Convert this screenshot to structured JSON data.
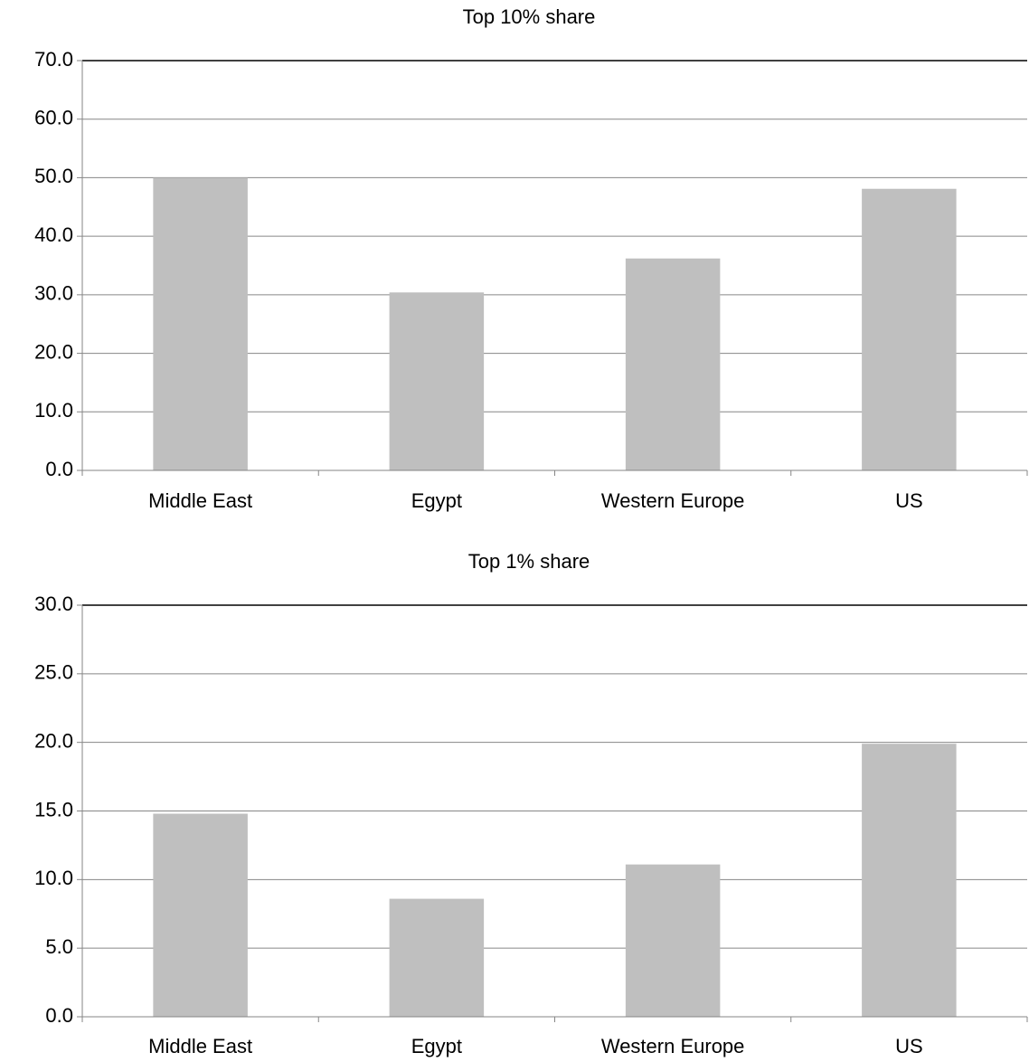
{
  "chart_data": [
    {
      "type": "bar",
      "title": "Top 10% share",
      "categories": [
        "Middle East",
        "Egypt",
        "Western Europe",
        "US"
      ],
      "values": [
        50.0,
        30.4,
        36.2,
        48.1
      ],
      "color": "#bfbfbf",
      "ylim": [
        0,
        70
      ],
      "yticks": [
        {
          "value": 0,
          "label": "0.0"
        },
        {
          "value": 10,
          "label": "10.0"
        },
        {
          "value": 20,
          "label": "20.0"
        },
        {
          "value": 30,
          "label": "30.0"
        },
        {
          "value": 40,
          "label": "40.0"
        },
        {
          "value": 50,
          "label": "50.0"
        },
        {
          "value": 60,
          "label": "60.0"
        },
        {
          "value": 70,
          "label": "70.0"
        }
      ],
      "grid": true
    },
    {
      "type": "bar",
      "title": "Top 1% share",
      "categories": [
        "Middle East",
        "Egypt",
        "Western Europe",
        "US"
      ],
      "values": [
        14.8,
        8.6,
        11.1,
        19.9
      ],
      "color": "#bfbfbf",
      "ylim": [
        0,
        30
      ],
      "yticks": [
        {
          "value": 0,
          "label": "0.0"
        },
        {
          "value": 5,
          "label": "5.0"
        },
        {
          "value": 10,
          "label": "10.0"
        },
        {
          "value": 15,
          "label": "15.0"
        },
        {
          "value": 20,
          "label": "20.0"
        },
        {
          "value": 25,
          "label": "25.0"
        },
        {
          "value": 30,
          "label": "30.0"
        }
      ],
      "grid": true
    }
  ]
}
